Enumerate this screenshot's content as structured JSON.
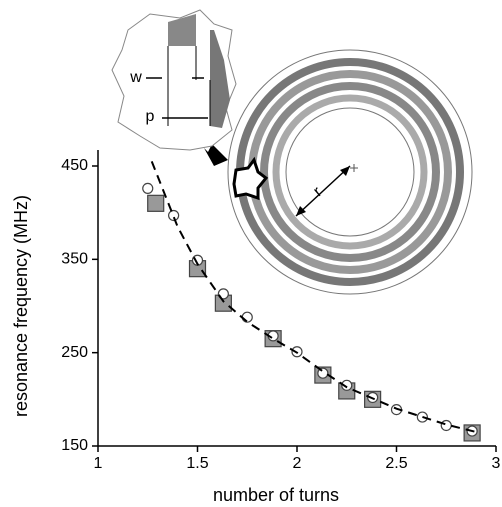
{
  "chart_data": {
    "type": "scatter",
    "x_label": "number of turns",
    "y_label": "resonance frequency (MHz)",
    "xlim": [
      1,
      3
    ],
    "ylim": [
      150,
      450
    ],
    "xticks": [
      1,
      1.5,
      2,
      2.5,
      3
    ],
    "yticks": [
      150,
      250,
      350,
      450
    ],
    "annotations": [
      "w",
      "p",
      "r"
    ],
    "series": [
      {
        "marker": "square",
        "color": "#999999",
        "x": [
          1.29,
          1.5,
          1.63,
          1.88,
          2.13,
          2.25,
          2.38,
          2.88
        ],
        "values": [
          410,
          340,
          303,
          265,
          226,
          209,
          200,
          164
        ]
      },
      {
        "marker": "circle",
        "color": "#ffffff",
        "x": [
          1.25,
          1.38,
          1.5,
          1.63,
          1.75,
          1.88,
          2,
          2.13,
          2.25,
          2.38,
          2.5,
          2.63,
          2.75,
          2.88
        ],
        "values": [
          426,
          397,
          349,
          313,
          288,
          268,
          251,
          228,
          215,
          202,
          189,
          181,
          172,
          166
        ]
      },
      {
        "marker": "dashed-line",
        "color": "#000000",
        "x": [
          1.27,
          1.4,
          1.5,
          1.63,
          1.75,
          1.88,
          2,
          2.13,
          2.25,
          2.5,
          2.75,
          2.9
        ],
        "values": [
          455,
          385,
          345,
          305,
          283,
          265,
          250,
          230,
          213,
          190,
          173,
          165
        ]
      }
    ]
  }
}
